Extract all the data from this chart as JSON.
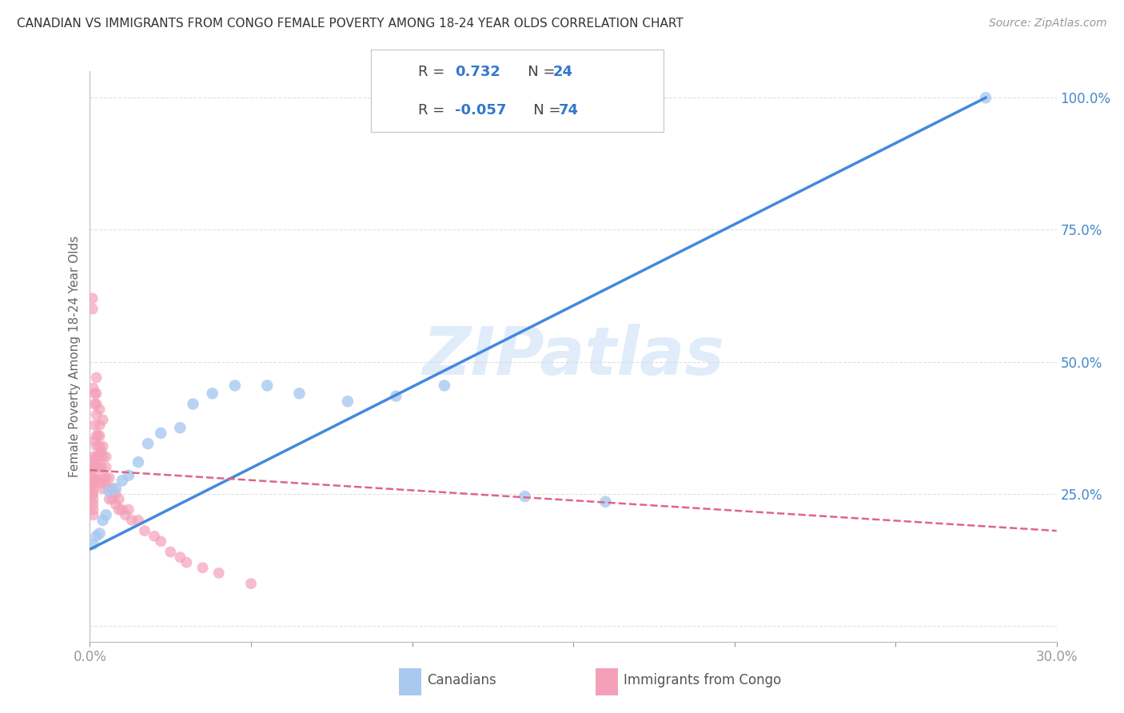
{
  "title": "CANADIAN VS IMMIGRANTS FROM CONGO FEMALE POVERTY AMONG 18-24 YEAR OLDS CORRELATION CHART",
  "source": "Source: ZipAtlas.com",
  "ylabel": "Female Poverty Among 18-24 Year Olds",
  "xlabel_canadian": "Canadians",
  "xlabel_congo": "Immigrants from Congo",
  "watermark": "ZIPatlas",
  "x_min": 0.0,
  "x_max": 0.3,
  "y_min": 0.0,
  "y_max": 1.05,
  "color_canadian": "#a8c8f0",
  "color_congo": "#f4a0b8",
  "color_line_canadian": "#4488dd",
  "color_line_congo": "#dd6688",
  "background_color": "#ffffff",
  "grid_color": "#dddddd",
  "can_x": [
    0.001,
    0.002,
    0.003,
    0.004,
    0.005,
    0.006,
    0.008,
    0.01,
    0.012,
    0.015,
    0.018,
    0.022,
    0.028,
    0.032,
    0.038,
    0.045,
    0.055,
    0.065,
    0.08,
    0.095,
    0.11,
    0.135,
    0.16,
    0.278
  ],
  "can_y": [
    0.155,
    0.17,
    0.175,
    0.2,
    0.21,
    0.255,
    0.26,
    0.275,
    0.285,
    0.31,
    0.345,
    0.365,
    0.375,
    0.42,
    0.44,
    0.455,
    0.455,
    0.44,
    0.425,
    0.435,
    0.455,
    0.245,
    0.235,
    1.0
  ],
  "congo_x": [
    0.0005,
    0.0006,
    0.0007,
    0.0008,
    0.0009,
    0.001,
    0.001,
    0.001,
    0.001,
    0.001,
    0.001,
    0.001,
    0.001,
    0.001,
    0.001,
    0.001,
    0.0015,
    0.0015,
    0.0015,
    0.0015,
    0.002,
    0.002,
    0.002,
    0.002,
    0.002,
    0.002,
    0.002,
    0.002,
    0.0025,
    0.0025,
    0.003,
    0.003,
    0.003,
    0.003,
    0.003,
    0.003,
    0.0035,
    0.0035,
    0.004,
    0.004,
    0.004,
    0.004,
    0.0045,
    0.005,
    0.005,
    0.005,
    0.006,
    0.006,
    0.006,
    0.007,
    0.007,
    0.008,
    0.008,
    0.009,
    0.009,
    0.01,
    0.011,
    0.012,
    0.013,
    0.015,
    0.017,
    0.02,
    0.022,
    0.025,
    0.028,
    0.03,
    0.035,
    0.04,
    0.05,
    0.0008,
    0.001,
    0.002,
    0.003,
    0.004
  ],
  "congo_y": [
    0.28,
    0.3,
    0.25,
    0.62,
    0.27,
    0.32,
    0.31,
    0.3,
    0.28,
    0.27,
    0.26,
    0.25,
    0.24,
    0.23,
    0.22,
    0.21,
    0.44,
    0.42,
    0.38,
    0.35,
    0.44,
    0.42,
    0.4,
    0.36,
    0.34,
    0.32,
    0.3,
    0.28,
    0.36,
    0.32,
    0.38,
    0.36,
    0.34,
    0.32,
    0.3,
    0.27,
    0.33,
    0.3,
    0.34,
    0.32,
    0.28,
    0.26,
    0.27,
    0.32,
    0.3,
    0.28,
    0.28,
    0.26,
    0.24,
    0.26,
    0.24,
    0.25,
    0.23,
    0.24,
    0.22,
    0.22,
    0.21,
    0.22,
    0.2,
    0.2,
    0.18,
    0.17,
    0.16,
    0.14,
    0.13,
    0.12,
    0.11,
    0.1,
    0.08,
    0.6,
    0.45,
    0.47,
    0.41,
    0.39
  ],
  "line_can_x0": 0.0,
  "line_can_y0": 0.145,
  "line_can_x1": 0.278,
  "line_can_y1": 1.0,
  "line_congo_x0": 0.0,
  "line_congo_y0": 0.295,
  "line_congo_x1": 0.3,
  "line_congo_y1": 0.18
}
